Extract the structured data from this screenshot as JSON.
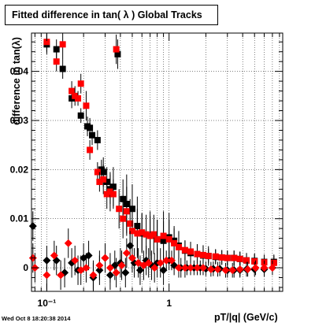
{
  "page": {
    "title": "Fitted difference in tan( λ )  Global Tracks",
    "timestamp": "Wed Oct  8 18:20:38 2014"
  },
  "chart_data": {
    "type": "scatter",
    "title": "Fitted difference in tan( λ )  Global Tracks",
    "xlabel": "pT/|q| (GeV/c)",
    "ylabel": "difference in tan(λ)",
    "xscale": "log",
    "xlim": [
      0.075,
      8.5
    ],
    "ylim": [
      -0.0048,
      0.0478
    ],
    "grid": true,
    "x_ticks": [
      {
        "v": 0.1,
        "label": "10⁻¹"
      },
      {
        "v": 1,
        "label": "1"
      }
    ],
    "y_ticks": [
      {
        "v": 0,
        "label": "0"
      },
      {
        "v": 0.01,
        "label": "0.01"
      },
      {
        "v": 0.02,
        "label": "0.02"
      },
      {
        "v": 0.03,
        "label": "0.03"
      },
      {
        "v": 0.04,
        "label": "0.04"
      }
    ],
    "colors": {
      "black": "#000000",
      "red": "#ff0000"
    },
    "series": [
      {
        "marker": "square",
        "color": "#000000",
        "points": [
          [
            0.1,
            0.0455,
            0.002
          ],
          [
            0.12,
            0.0445,
            0.002
          ],
          [
            0.135,
            0.0405,
            0.002
          ],
          [
            0.16,
            0.0345,
            0.002
          ],
          [
            0.19,
            0.031,
            0.0015
          ],
          [
            0.215,
            0.0288,
            0.002
          ],
          [
            0.225,
            0.0285,
            0.002
          ],
          [
            0.235,
            0.027,
            0.002
          ],
          [
            0.26,
            0.026,
            0.002
          ],
          [
            0.28,
            0.02,
            0.002
          ],
          [
            0.29,
            0.0195,
            0.003
          ],
          [
            0.31,
            0.0175,
            0.003
          ],
          [
            0.33,
            0.016,
            0.003
          ],
          [
            0.35,
            0.0165,
            0.004
          ],
          [
            0.38,
            0.0435,
            0.003
          ],
          [
            0.42,
            0.014,
            0.004
          ],
          [
            0.45,
            0.013,
            0.006
          ],
          [
            0.5,
            0.012,
            0.005
          ],
          [
            0.55,
            0.0085,
            0.006
          ],
          [
            0.6,
            0.007,
            0.004
          ],
          [
            0.7,
            0.0065,
            0.005
          ],
          [
            0.8,
            0.0058,
            0.004
          ],
          [
            0.9,
            0.0055,
            0.004
          ],
          [
            1.0,
            0.0062,
            0.005
          ],
          [
            1.1,
            0.0055,
            0.003
          ],
          [
            1.2,
            0.0045,
            0.003
          ],
          [
            1.35,
            0.0035,
            0.002
          ],
          [
            1.5,
            0.003,
            0.002
          ],
          [
            1.7,
            0.0028,
            0.002
          ],
          [
            1.9,
            0.0025,
            0.002
          ],
          [
            2.1,
            0.0024,
            0.002
          ],
          [
            2.4,
            0.0022,
            0.0015
          ],
          [
            2.7,
            0.0021,
            0.0015
          ],
          [
            3.0,
            0.002,
            0.0015
          ],
          [
            3.4,
            0.002,
            0.0015
          ],
          [
            3.8,
            0.0018,
            0.0015
          ],
          [
            4.3,
            0.0015,
            0.0015
          ],
          [
            5.0,
            0.0014,
            0.0015
          ],
          [
            6.0,
            0.0012,
            0.0015
          ],
          [
            7.2,
            0.0012,
            0.0015
          ]
        ]
      },
      {
        "marker": "square",
        "color": "#ff0000",
        "points": [
          [
            0.1,
            0.046,
            0.002
          ],
          [
            0.12,
            0.042,
            0.002
          ],
          [
            0.135,
            0.0455,
            0.003
          ],
          [
            0.16,
            0.036,
            0.002
          ],
          [
            0.17,
            0.035,
            0.002
          ],
          [
            0.18,
            0.0345,
            0.0015
          ],
          [
            0.19,
            0.0375,
            0.002
          ],
          [
            0.21,
            0.033,
            0.003
          ],
          [
            0.225,
            0.024,
            0.002
          ],
          [
            0.26,
            0.0195,
            0.002
          ],
          [
            0.27,
            0.0175,
            0.002
          ],
          [
            0.29,
            0.018,
            0.003
          ],
          [
            0.31,
            0.015,
            0.003
          ],
          [
            0.33,
            0.0155,
            0.004
          ],
          [
            0.35,
            0.015,
            0.003
          ],
          [
            0.37,
            0.0445,
            0.003
          ],
          [
            0.39,
            0.012,
            0.004
          ],
          [
            0.42,
            0.01,
            0.004
          ],
          [
            0.45,
            0.0115,
            0.005
          ],
          [
            0.48,
            0.009,
            0.005
          ],
          [
            0.5,
            0.0075,
            0.004
          ],
          [
            0.55,
            0.007,
            0.005
          ],
          [
            0.6,
            0.0072,
            0.004
          ],
          [
            0.65,
            0.0068,
            0.004
          ],
          [
            0.7,
            0.0065,
            0.004
          ],
          [
            0.75,
            0.0068,
            0.004
          ],
          [
            0.8,
            0.0058,
            0.004
          ],
          [
            0.9,
            0.0065,
            0.005
          ],
          [
            1.0,
            0.0058,
            0.004
          ],
          [
            1.1,
            0.005,
            0.003
          ],
          [
            1.2,
            0.0042,
            0.003
          ],
          [
            1.35,
            0.0036,
            0.002
          ],
          [
            1.5,
            0.0033,
            0.002
          ],
          [
            1.7,
            0.0028,
            0.002
          ],
          [
            1.9,
            0.0026,
            0.002
          ],
          [
            2.1,
            0.0024,
            0.0015
          ],
          [
            2.4,
            0.0023,
            0.0015
          ],
          [
            2.7,
            0.0021,
            0.0015
          ],
          [
            3.0,
            0.002,
            0.0015
          ],
          [
            3.4,
            0.002,
            0.0015
          ],
          [
            3.8,
            0.0018,
            0.0015
          ],
          [
            4.3,
            0.0015,
            0.0015
          ],
          [
            5.0,
            0.0013,
            0.0015
          ],
          [
            6.0,
            0.0011,
            0.0015
          ],
          [
            7.2,
            0.001,
            0.0015
          ]
        ]
      },
      {
        "marker": "diamond",
        "color": "#000000",
        "points": [
          [
            0.077,
            0.0085,
            0.003
          ],
          [
            0.1,
            0.0015,
            0.003
          ],
          [
            0.12,
            0.0015,
            0.003
          ],
          [
            0.14,
            -0.001,
            0.003
          ],
          [
            0.16,
            0.001,
            0.003
          ],
          [
            0.18,
            -0.0005,
            0.003
          ],
          [
            0.2,
            0.002,
            0.003
          ],
          [
            0.22,
            0.0025,
            0.003
          ],
          [
            0.24,
            -0.002,
            0.003
          ],
          [
            0.27,
            -0.0005,
            0.003
          ],
          [
            0.3,
            0.002,
            0.003
          ],
          [
            0.33,
            -0.0015,
            0.003
          ],
          [
            0.36,
            0.0005,
            0.003
          ],
          [
            0.4,
            0.001,
            0.003
          ],
          [
            0.44,
            -0.001,
            0.003
          ],
          [
            0.48,
            0.0045,
            0.003
          ],
          [
            0.52,
            0.001,
            0.003
          ],
          [
            0.58,
            -0.0005,
            0.003
          ],
          [
            0.65,
            0.0015,
            0.003
          ],
          [
            0.72,
            0.0005,
            0.003
          ],
          [
            0.8,
            0.001,
            0.003
          ],
          [
            0.9,
            -0.0005,
            0.003
          ],
          [
            1.0,
            0.0015,
            0.002
          ],
          [
            1.1,
            0.0005,
            0.002
          ],
          [
            1.25,
            0,
            0.002
          ],
          [
            1.4,
            0,
            0.0015
          ],
          [
            1.6,
            0,
            0.0015
          ],
          [
            1.8,
            0,
            0.0015
          ],
          [
            2.0,
            -0.0002,
            0.0015
          ],
          [
            2.3,
            -0.0002,
            0.0015
          ],
          [
            2.6,
            -0.0002,
            0.0015
          ],
          [
            3.0,
            -0.0005,
            0.0015
          ],
          [
            3.4,
            -0.0005,
            0.0015
          ],
          [
            3.8,
            -0.0005,
            0.0015
          ],
          [
            4.3,
            -0.0003,
            0.0015
          ],
          [
            5.0,
            -0.0003,
            0.0015
          ],
          [
            6.0,
            -0.0003,
            0.0015
          ]
        ]
      },
      {
        "marker": "diamond",
        "color": "#ff0000",
        "points": [
          [
            0.077,
            0.002,
            0.003
          ],
          [
            0.08,
            0,
            0.003
          ],
          [
            0.1,
            -0.0015,
            0.003
          ],
          [
            0.115,
            0.0025,
            0.003
          ],
          [
            0.13,
            -0.0015,
            0.003
          ],
          [
            0.15,
            0.005,
            0.003
          ],
          [
            0.17,
            0.0015,
            0.003
          ],
          [
            0.19,
            -0.0005,
            0.003
          ],
          [
            0.21,
            0,
            0.003
          ],
          [
            0.24,
            -0.0015,
            0.003
          ],
          [
            0.27,
            0.0005,
            0.003
          ],
          [
            0.3,
            0.002,
            0.003
          ],
          [
            0.33,
            0,
            0.003
          ],
          [
            0.37,
            -0.001,
            0.003
          ],
          [
            0.41,
            0.0005,
            0.003
          ],
          [
            0.45,
            0.003,
            0.003
          ],
          [
            0.5,
            0.002,
            0.003
          ],
          [
            0.56,
            0.001,
            0.003
          ],
          [
            0.62,
            0.0005,
            0.003
          ],
          [
            0.68,
            0.001,
            0.003
          ],
          [
            0.76,
            0,
            0.003
          ],
          [
            0.85,
            0.001,
            0.003
          ],
          [
            0.95,
            0.0015,
            0.002
          ],
          [
            1.05,
            0.0015,
            0.002
          ],
          [
            1.2,
            0,
            0.002
          ],
          [
            1.35,
            0,
            0.002
          ],
          [
            1.5,
            0,
            0.0015
          ],
          [
            1.7,
            0,
            0.0015
          ],
          [
            1.9,
            0,
            0.0015
          ],
          [
            2.2,
            -0.0003,
            0.0015
          ],
          [
            2.5,
            -0.0003,
            0.0015
          ],
          [
            2.9,
            -0.0005,
            0.0015
          ],
          [
            3.3,
            -0.0005,
            0.0015
          ],
          [
            3.8,
            -0.0003,
            0.0015
          ],
          [
            4.4,
            -0.0003,
            0.0015
          ],
          [
            5.1,
            0,
            0.0015
          ],
          [
            6.0,
            0,
            0.0015
          ],
          [
            7.0,
            0,
            0.0015
          ]
        ]
      }
    ]
  }
}
